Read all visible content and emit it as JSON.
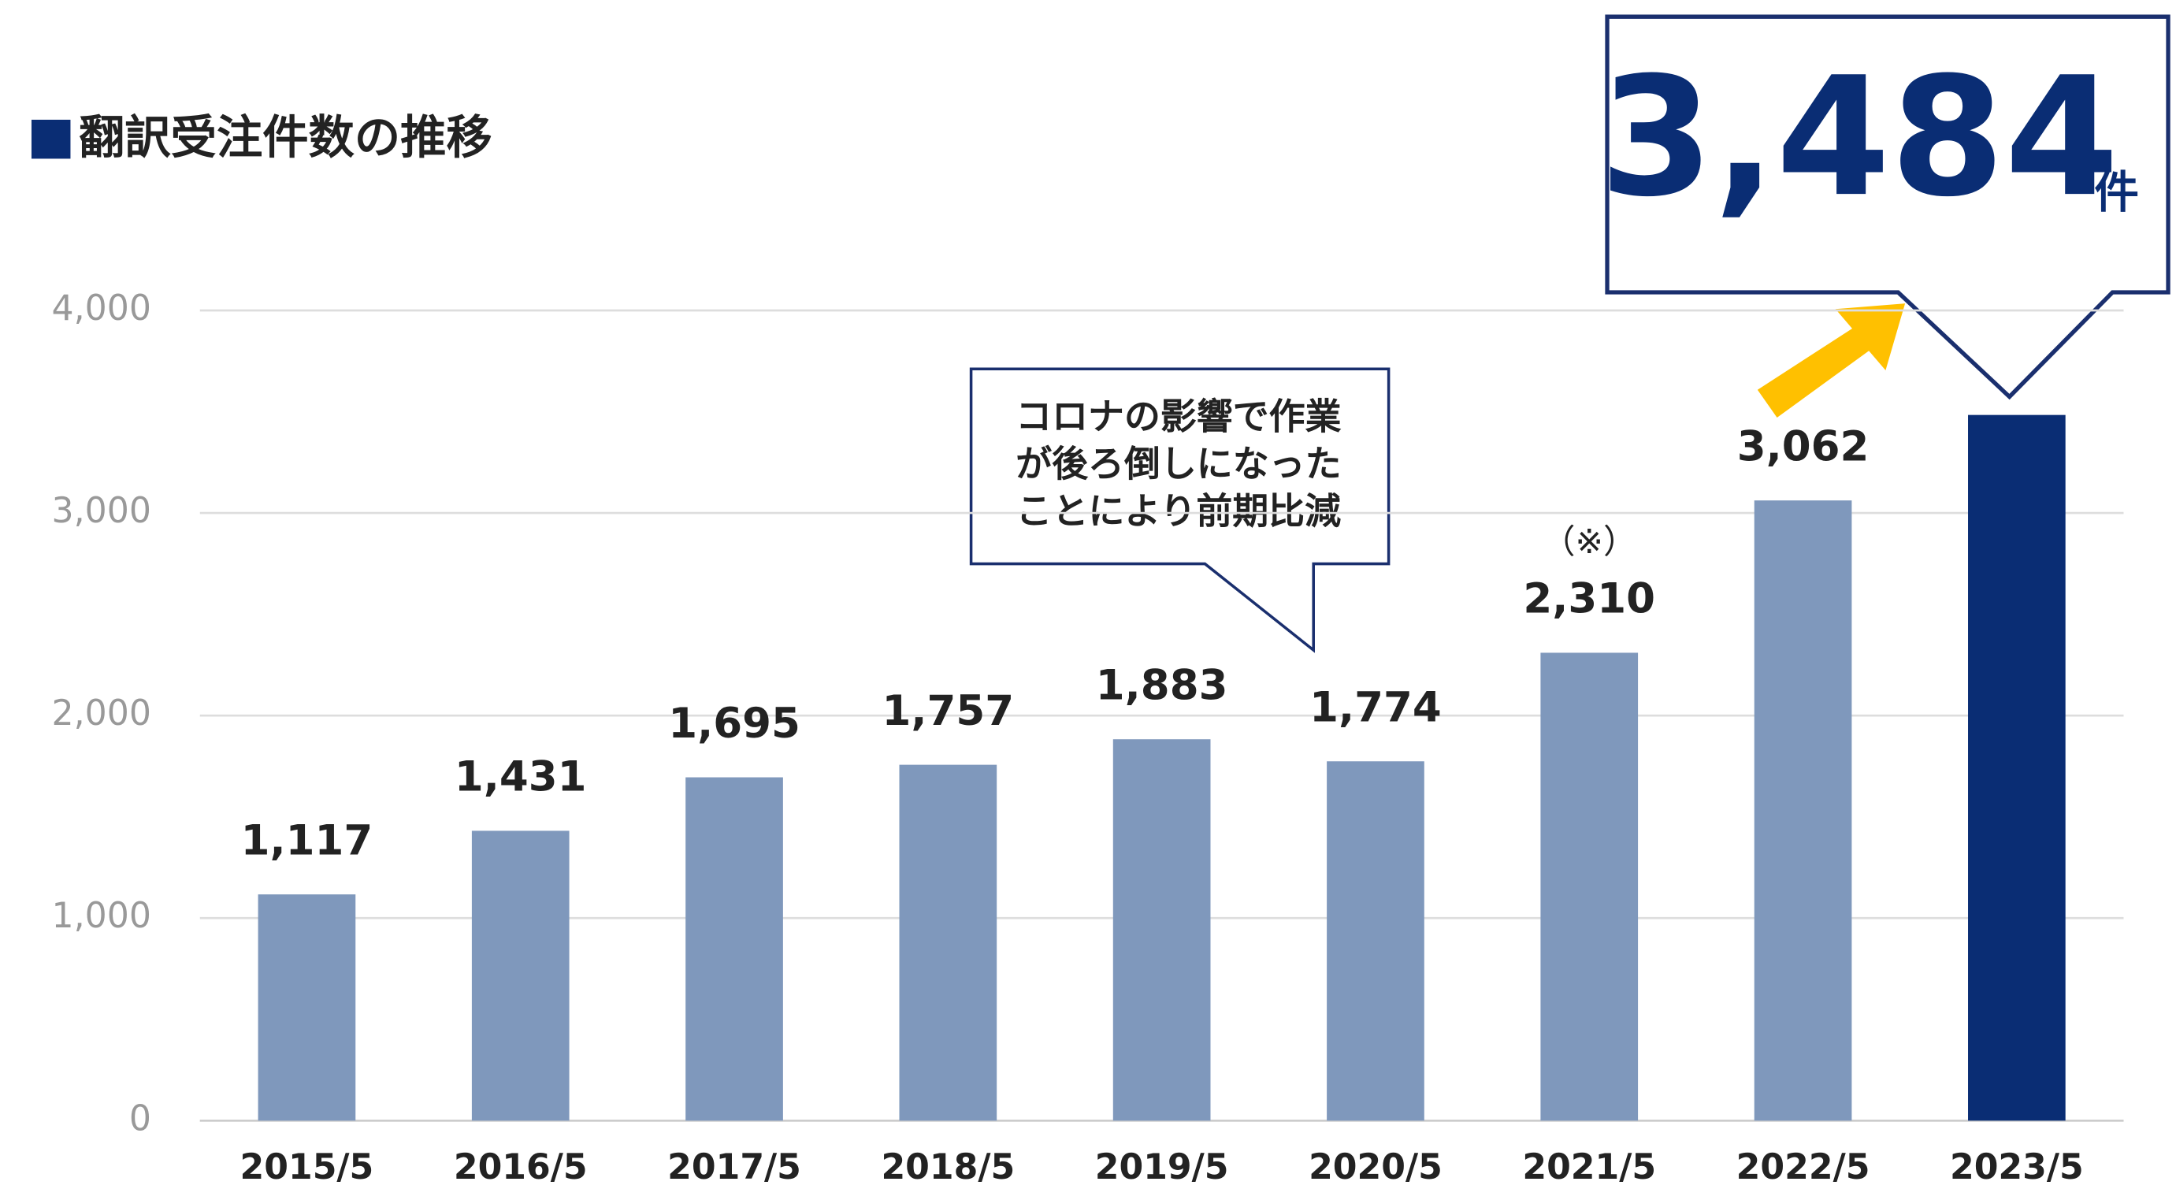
{
  "chart_data": {
    "type": "bar",
    "title": "翻訳受注件数の推移",
    "categories": [
      "2015/5",
      "2016/5",
      "2017/5",
      "2018/5",
      "2019/5",
      "2020/5",
      "2021/5",
      "2022/5",
      "2023/5"
    ],
    "values": [
      1117,
      1431,
      1695,
      1757,
      1883,
      1774,
      2310,
      3062,
      3484
    ],
    "value_labels": [
      "1,117",
      "1,431",
      "1,695",
      "1,757",
      "1,883",
      "1,774",
      "2,310",
      "3,062",
      "3,484"
    ],
    "colors": [
      "#7f98bc",
      "#7f98bc",
      "#7f98bc",
      "#7f98bc",
      "#7f98bc",
      "#7f98bc",
      "#7f98bc",
      "#7f98bc",
      "#0a2d74"
    ],
    "ylim": [
      0,
      4000
    ],
    "yticks": [
      0,
      {
        "value": 1000,
        "label": "1,000"
      },
      {
        "value": 2000,
        "label": "2,000"
      },
      {
        "value": 3000,
        "label": "3,000"
      },
      {
        "value": 4000,
        "label": "4,000"
      }
    ],
    "grid": true,
    "note": "（※）",
    "highlight_unit": "件",
    "callout": [
      "コロナの影響で作業",
      "が後ろ倒しになった",
      "ことにより前期比減"
    ]
  }
}
